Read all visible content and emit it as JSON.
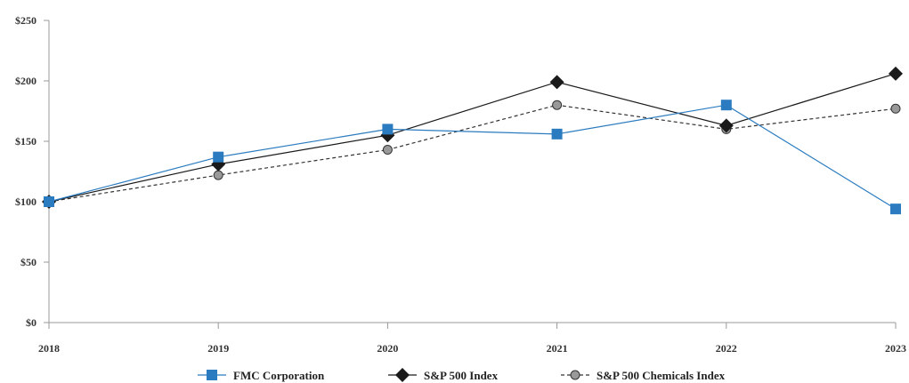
{
  "chart_data": {
    "type": "line",
    "x": [
      "2018",
      "2019",
      "2020",
      "2021",
      "2022",
      "2023"
    ],
    "ylim": [
      0,
      250
    ],
    "y_ticks": [
      "$0",
      "$50",
      "$100",
      "$150",
      "$200",
      "$250"
    ],
    "y_tick_values": [
      0,
      50,
      100,
      150,
      200,
      250
    ],
    "grid": false,
    "legend_position": "bottom",
    "title": "",
    "xlabel": "",
    "ylabel": "",
    "series": [
      {
        "name": "FMC Corporation",
        "values": [
          100,
          137,
          160,
          156,
          180,
          94
        ],
        "color": "#2a7bbf",
        "marker": "square",
        "line": "solid"
      },
      {
        "name": "S&P 500 Index",
        "values": [
          100,
          131,
          155,
          199,
          163,
          206
        ],
        "color": "#1a1a1a",
        "marker": "diamond",
        "line": "solid"
      },
      {
        "name": "S&P 500 Chemicals Index",
        "values": [
          100,
          122,
          143,
          180,
          160,
          177
        ],
        "color": "#333333",
        "marker": "circle",
        "line": "dashed",
        "marker_fill": "#999999"
      }
    ]
  }
}
